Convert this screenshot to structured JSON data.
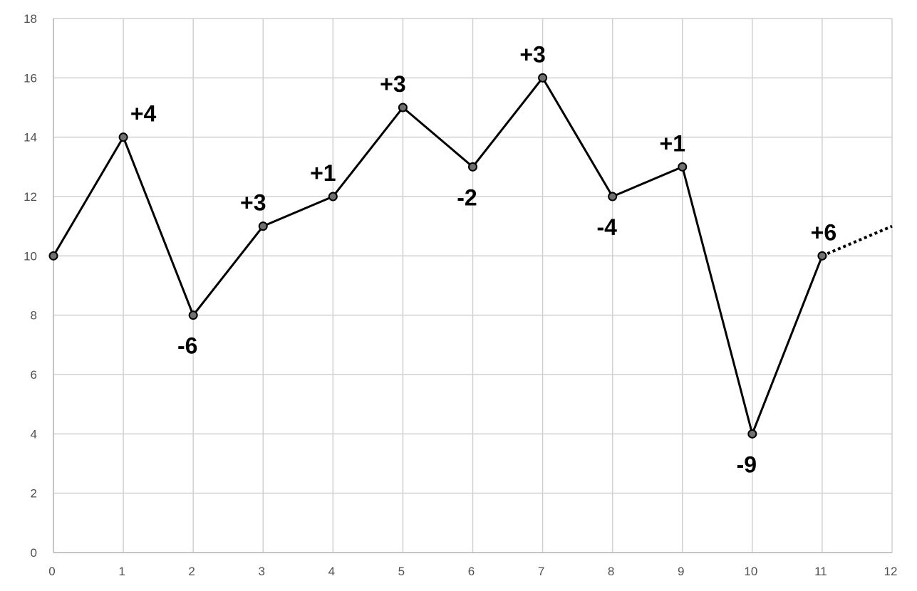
{
  "chart_data": {
    "type": "line",
    "title": "",
    "xlabel": "",
    "ylabel": "",
    "xlim": [
      0,
      12
    ],
    "ylim": [
      0,
      18
    ],
    "x_ticks": [
      0,
      1,
      2,
      3,
      4,
      5,
      6,
      7,
      8,
      9,
      10,
      11,
      12
    ],
    "y_ticks": [
      0,
      2,
      4,
      6,
      8,
      10,
      12,
      14,
      16,
      18
    ],
    "grid": true,
    "legend": "none",
    "line_color": "#000000",
    "marker_color": "#707070",
    "x": [
      0,
      1,
      2,
      3,
      4,
      5,
      6,
      7,
      8,
      9,
      10,
      11
    ],
    "y": [
      10,
      14,
      8,
      11,
      12,
      15,
      13,
      16,
      12,
      13,
      4,
      10
    ],
    "annotations": [
      "",
      "+4",
      "-6",
      "+3",
      "+1",
      "+3",
      "-2",
      "+3",
      "-4",
      "+1",
      "-9",
      "+6"
    ],
    "continuation": {
      "style": "dotted",
      "x": [
        11,
        12
      ],
      "y": [
        10,
        11
      ]
    }
  }
}
